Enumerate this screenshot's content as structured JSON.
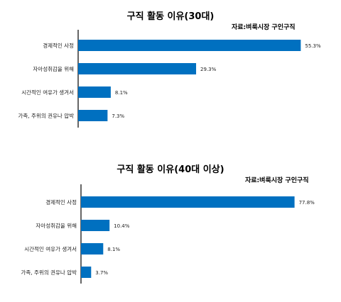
{
  "chart_data": [
    {
      "type": "bar",
      "orientation": "horizontal",
      "title": "구직 활동 이유(30대)",
      "source": "자료:벼룩시장 구인구직",
      "categories": [
        "경제적인 사정",
        "자아성취감을 위해",
        "시간적인 여유가 생겨서",
        "가족, 주위의 권유나 압박"
      ],
      "values": [
        55.3,
        29.3,
        8.1,
        7.3
      ],
      "data_labels": [
        "55.3%",
        "29.3%",
        "8.1%",
        "7.3%"
      ],
      "xlim": [
        0,
        60
      ],
      "grid": false,
      "color": "#0070C0"
    },
    {
      "type": "bar",
      "orientation": "horizontal",
      "title": "구직 활동 이유(40대 이상)",
      "source": "자료:벼룩시장 구인구직",
      "categories": [
        "경제적인 사정",
        "자아성취감을 위해",
        "시간적인 여유가 생겨서",
        "가족, 주위의 권유나 압박"
      ],
      "values": [
        77.8,
        10.4,
        8.1,
        3.7
      ],
      "data_labels": [
        "77.8%",
        "10.4%",
        "8.1%",
        "3.7%"
      ],
      "xlim": [
        0,
        88
      ],
      "grid": false,
      "color": "#0070C0"
    }
  ]
}
